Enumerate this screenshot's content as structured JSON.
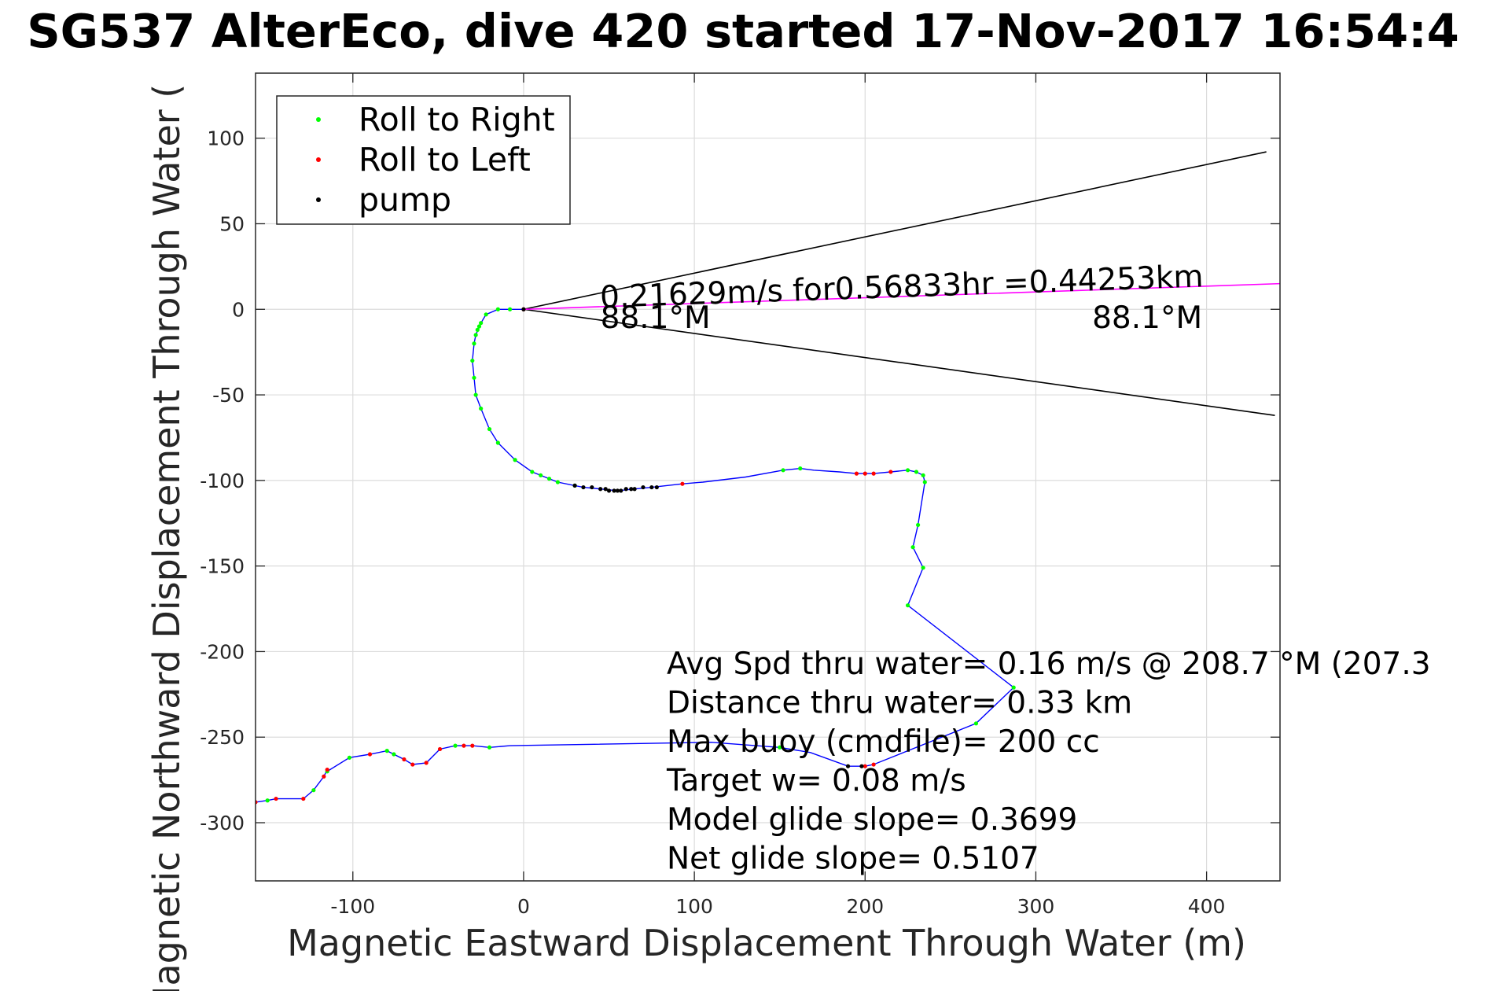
{
  "chart_data": {
    "type": "scatter",
    "title": "SG537 AlterEco, dive 420 started 17-Nov-2017 16:54:4",
    "xlabel": "Magnetic Eastward Displacement Through Water (m)",
    "ylabel": "Magnetic Northward Displacement Through Water (",
    "xlim": [
      -157,
      443
    ],
    "ylim": [
      -334,
      138
    ],
    "xticks": [
      -100,
      0,
      100,
      200,
      300,
      400
    ],
    "yticks": [
      100,
      50,
      0,
      -50,
      -100,
      -150,
      -200,
      -250,
      -300
    ],
    "grid": true,
    "legend": {
      "placement": "top-left",
      "entries": [
        {
          "label": "Roll to Right",
          "color": "#00ff00"
        },
        {
          "label": "Roll to Left",
          "color": "#ff0000"
        },
        {
          "label": "pump",
          "color": "#000000"
        }
      ]
    },
    "track_color": "#0000ff",
    "vector_color": "#ff00ff",
    "track": [
      [
        -157,
        -288
      ],
      [
        -150,
        -287
      ],
      [
        -145,
        -286
      ],
      [
        -129,
        -286
      ],
      [
        -123,
        -281
      ],
      [
        -117,
        -273
      ],
      [
        -115,
        -269
      ],
      [
        -115,
        -270
      ],
      [
        -102,
        -262
      ],
      [
        -90,
        -260
      ],
      [
        -80,
        -258
      ],
      [
        -76,
        -260
      ],
      [
        -70,
        -263
      ],
      [
        -65,
        -266
      ],
      [
        -57,
        -265
      ],
      [
        -49,
        -257
      ],
      [
        -40,
        -255
      ],
      [
        -35,
        -255
      ],
      [
        -30,
        -255
      ],
      [
        -20,
        -256
      ],
      [
        -8,
        -255
      ],
      [
        110,
        -253
      ],
      [
        150,
        -256
      ],
      [
        168,
        -259
      ],
      [
        190,
        -267
      ],
      [
        200,
        -267
      ],
      [
        205,
        -266
      ],
      [
        265,
        -242
      ],
      [
        287,
        -221
      ],
      [
        225,
        -173
      ],
      [
        234,
        -151
      ],
      [
        228,
        -139
      ],
      [
        231,
        -126
      ],
      [
        235,
        -101
      ],
      [
        234,
        -97
      ],
      [
        230,
        -95
      ],
      [
        225,
        -94
      ],
      [
        215,
        -95
      ],
      [
        205,
        -96
      ],
      [
        195,
        -96
      ],
      [
        185,
        -95
      ],
      [
        170,
        -94
      ],
      [
        162,
        -93
      ],
      [
        152,
        -94
      ],
      [
        130,
        -98
      ],
      [
        105,
        -101
      ],
      [
        93,
        -102
      ],
      [
        75,
        -104
      ],
      [
        65,
        -105
      ],
      [
        55,
        -106
      ],
      [
        45,
        -105
      ],
      [
        35,
        -104
      ],
      [
        30,
        -103
      ],
      [
        20,
        -101
      ],
      [
        5,
        -95
      ],
      [
        -5,
        -88
      ],
      [
        -15,
        -78
      ],
      [
        -20,
        -70
      ],
      [
        -25,
        -58
      ],
      [
        -28,
        -50
      ],
      [
        -29,
        -40
      ],
      [
        -30,
        -30
      ],
      [
        -29,
        -20
      ],
      [
        -28,
        -15
      ],
      [
        -25,
        -8
      ],
      [
        -22,
        -3
      ],
      [
        -15,
        0
      ],
      [
        -8,
        0
      ],
      [
        0,
        0
      ]
    ],
    "roll_right": [
      [
        -150,
        -287
      ],
      [
        -123,
        -281
      ],
      [
        -115,
        -270
      ],
      [
        -102,
        -262
      ],
      [
        -80,
        -258
      ],
      [
        -76,
        -260
      ],
      [
        -40,
        -255
      ],
      [
        -20,
        -256
      ],
      [
        150,
        -256
      ],
      [
        287,
        -221
      ],
      [
        265,
        -242
      ],
      [
        225,
        -173
      ],
      [
        234,
        -151
      ],
      [
        228,
        -139
      ],
      [
        231,
        -126
      ],
      [
        235,
        -101
      ],
      [
        234,
        -97
      ],
      [
        230,
        -95
      ],
      [
        225,
        -94
      ],
      [
        162,
        -93
      ],
      [
        152,
        -94
      ],
      [
        30,
        -103
      ],
      [
        20,
        -101
      ],
      [
        5,
        -95
      ],
      [
        -5,
        -88
      ],
      [
        -15,
        -78
      ],
      [
        -20,
        -70
      ],
      [
        -25,
        -58
      ],
      [
        -28,
        -50
      ],
      [
        -29,
        -40
      ],
      [
        -30,
        -30
      ],
      [
        -29,
        -20
      ],
      [
        -28,
        -15
      ],
      [
        -25,
        -8
      ],
      [
        -22,
        -3
      ],
      [
        -15,
        0
      ],
      [
        -8,
        0
      ],
      [
        10,
        -97
      ],
      [
        15,
        -99
      ],
      [
        -27,
        -12
      ],
      [
        -26,
        -10
      ]
    ],
    "roll_left": [
      [
        -157,
        -288
      ],
      [
        -145,
        -286
      ],
      [
        -129,
        -286
      ],
      [
        -117,
        -273
      ],
      [
        -115,
        -269
      ],
      [
        -90,
        -260
      ],
      [
        -70,
        -263
      ],
      [
        -65,
        -266
      ],
      [
        -57,
        -265
      ],
      [
        -49,
        -257
      ],
      [
        -35,
        -255
      ],
      [
        -30,
        -255
      ],
      [
        93,
        -102
      ],
      [
        200,
        -267
      ],
      [
        205,
        -266
      ],
      [
        195,
        -96
      ],
      [
        200,
        -96
      ],
      [
        205,
        -96
      ],
      [
        215,
        -95
      ],
      [
        0,
        0
      ]
    ],
    "pump": [
      [
        30,
        -103
      ],
      [
        35,
        -104
      ],
      [
        40,
        -104
      ],
      [
        45,
        -105
      ],
      [
        48,
        -105
      ],
      [
        50,
        -106
      ],
      [
        53,
        -106
      ],
      [
        55,
        -106
      ],
      [
        57,
        -106
      ],
      [
        60,
        -105
      ],
      [
        63,
        -105
      ],
      [
        65,
        -105
      ],
      [
        70,
        -104
      ],
      [
        75,
        -104
      ],
      [
        78,
        -104
      ],
      [
        190,
        -267
      ],
      [
        198,
        -267
      ],
      [
        0,
        0
      ]
    ],
    "vector_lines": [
      {
        "from": [
          0,
          0
        ],
        "to": [
          435,
          92
        ],
        "color": "#000000"
      },
      {
        "from": [
          0,
          0
        ],
        "to": [
          440,
          -62
        ],
        "color": "#000000"
      },
      {
        "from": [
          0,
          0
        ],
        "to": [
          443,
          15
        ],
        "color": "#ff00ff"
      }
    ],
    "annotations": [
      {
        "text": "0.21629m/s for0.56833hr =0.44253km",
        "x": 45,
        "y": 1,
        "rotate": -2
      },
      {
        "text": "88.1°M",
        "x": 45,
        "y": -11,
        "rotate": 0
      },
      {
        "text": "88.1°M",
        "x": 333,
        "y": -11,
        "rotate": 0
      }
    ],
    "stats": [
      "Avg Spd thru water=  0.16 m/s @ 208.7 °M (207.3",
      "Distance thru water=  0.33 km",
      "Max buoy (cmdfile)= 200 cc",
      "Target w= 0.08 m/s",
      "Model glide slope= 0.3699",
      "Net glide slope= 0.5107"
    ]
  }
}
